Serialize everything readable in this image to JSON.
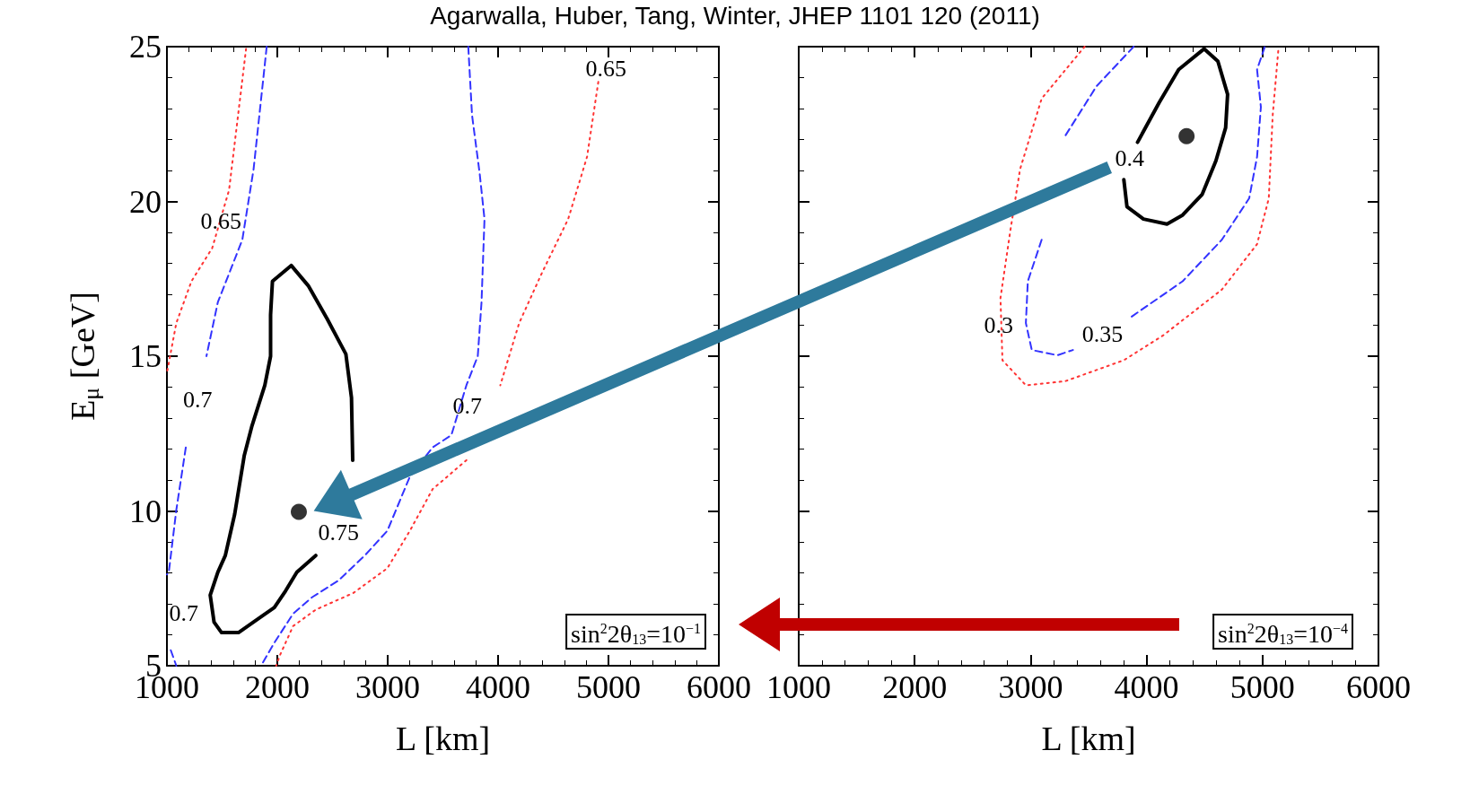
{
  "chart_data": [
    {
      "type": "line",
      "title": "Agarwalla, Huber, Tang, Winter, JHEP 1101 120 (2011)",
      "xlabel": "L [km]",
      "ylabel": "E$_{μ}$ [GeV]",
      "xlim": [
        1000,
        6000
      ],
      "xticks": [
        1000,
        2000,
        3000,
        4000,
        5000,
        6000
      ],
      "ylim": [
        5,
        25
      ],
      "yticks": [
        5,
        10,
        15,
        20,
        25
      ],
      "marker": "none",
      "series": [
        {
          "color": "#000000",
          "line_style": "solid",
          "x": [
            2348,
            2177,
            2075,
            1973,
            1836,
            1648,
            1495,
            1427,
            1392,
            1461,
            1529,
            1614,
            1700,
            1768,
            1887,
            1939,
            1939,
            1956,
            2126,
            2280,
            2451,
            2621,
            2672,
            2683
          ],
          "values": [
            8.56,
            8.02,
            7.42,
            6.88,
            6.54,
            6.07,
            6.07,
            6.41,
            7.28,
            8.02,
            8.56,
            9.9,
            11.78,
            12.72,
            14.06,
            15.0,
            16.34,
            17.42,
            17.93,
            17.28,
            16.21,
            15.07,
            13.66,
            11.64
          ]
        },
        {
          "color": "#3333ff",
          "line_style": "dashed",
          "x": [
            1904,
            1785,
            1683,
            1461,
            1358,
            1290,
            1171,
            1085,
            1017,
            1000
          ],
          "values": [
            25,
            21.04,
            18.76,
            16.74,
            15.0,
            null,
            12.05,
            10.03,
            8.02,
            7.95
          ]
        },
        {
          "color": "#3333ff",
          "line_style": "dashed",
          "x": [
            1035,
            1085
          ],
          "values": [
            5.5,
            5.0
          ]
        },
        {
          "color": "#ff3333",
          "line_style": "dotted",
          "x": [
            1717,
            1563,
            1410,
            1222,
            1085,
            1000
          ],
          "values": [
            24.93,
            20.37,
            18.49,
            17.42,
            16.07,
            14.46
          ]
        },
        {
          "color": "#3333ff",
          "line_style": "dashed",
          "x": [
            3730,
            3764,
            3833,
            3877,
            3850,
            3816,
            3713,
            3577,
            3406,
            3201,
            2997,
            2792,
            2553,
            2314,
            2143,
            1973,
            1853
          ],
          "values": [
            25,
            22.79,
            20.91,
            19.43,
            16.74,
            15.0,
            14.06,
            12.45,
            12.05,
            11.11,
            9.36,
            8.56,
            7.75,
            7.21,
            6.68,
            5.74,
            5.0
          ]
        },
        {
          "color": "#ff3333",
          "line_style": "dotted",
          "x": [
            4908,
            4806,
            4635,
            4396,
            4191,
            4020,
            3884,
            3713,
            3406,
            3201,
            2997,
            2689,
            2348,
            2143,
            2024,
            1990
          ],
          "values": [
            23.86,
            21.44,
            19.43,
            17.68,
            16.07,
            14.06,
            null,
            11.64,
            10.7,
            9.36,
            8.15,
            7.35,
            6.81,
            6.28,
            5.34,
            5.0
          ]
        },
        {
          "type": "scatter",
          "marker": "circle",
          "color": "#000000",
          "x": [
            2195
          ],
          "values": [
            9.97
          ]
        }
      ],
      "annotations": [
        "0.65",
        "0.7",
        "0.7",
        "0.7",
        "0.65",
        "0.75",
        "sin$^{2}$2θ$_{13}$=10$^{−1}$"
      ]
    },
    {
      "type": "line",
      "xlabel": "L [km]",
      "xlim": [
        1000,
        6000
      ],
      "xticks": [
        1000,
        2000,
        3000,
        4000,
        5000,
        6000
      ],
      "ylim": [
        5,
        25
      ],
      "yticks": [
        5,
        10,
        15,
        20,
        25
      ],
      "tick_labels": "x",
      "marker": "none",
      "series": [
        {
          "color": "#000000",
          "line_style": "solid",
          "x": [
            3922,
            4108,
            4277,
            4497,
            4615,
            4699,
            4682,
            4598,
            4480,
            4311,
            4176,
            3973,
            3831,
            3804
          ],
          "values": [
            21.91,
            23.19,
            24.26,
            24.93,
            24.53,
            23.46,
            22.38,
            21.31,
            20.23,
            19.56,
            19.27,
            19.43,
            19.83,
            20.7
          ]
        },
        {
          "color": "#3333ff",
          "line_style": "dashed",
          "x": [
            3889,
            3568,
            3297,
            3162,
            3095,
            2976,
            2959,
            3010,
            3230,
            3365
          ],
          "values": [
            25,
            23.72,
            22.11,
            null,
            18.76,
            17.42,
            16.07,
            15.2,
            15.03,
            15.2
          ]
        },
        {
          "color": "#3333ff",
          "line_style": "dashed",
          "x": [
            3872,
            4311,
            4649,
            4885,
            4953,
            4986,
            4953,
            5020
          ],
          "values": [
            16.28,
            17.42,
            18.76,
            20.1,
            21.44,
            23.05,
            24.26,
            25
          ]
        },
        {
          "color": "#ff3333",
          "line_style": "dotted",
          "x": [
            3466,
            3095,
            2909,
            2824,
            2740,
            2757,
            2959,
            3297,
            3804,
            4142,
            4649,
            4953,
            5054,
            5088,
            5139
          ],
          "values": [
            25,
            23.32,
            21.04,
            19.03,
            16.88,
            14.87,
            14.06,
            14.19,
            14.87,
            15.67,
            17.15,
            18.62,
            20.1,
            22.79,
            25
          ]
        },
        {
          "type": "scatter",
          "marker": "circle",
          "color": "#000000",
          "x": [
            4345
          ],
          "values": [
            22.11
          ]
        }
      ],
      "annotations": [
        "0.4",
        "0.3",
        "0.35",
        "sin$^{2}$2θ$_{13}$=10$^{−4}$"
      ]
    }
  ]
}
